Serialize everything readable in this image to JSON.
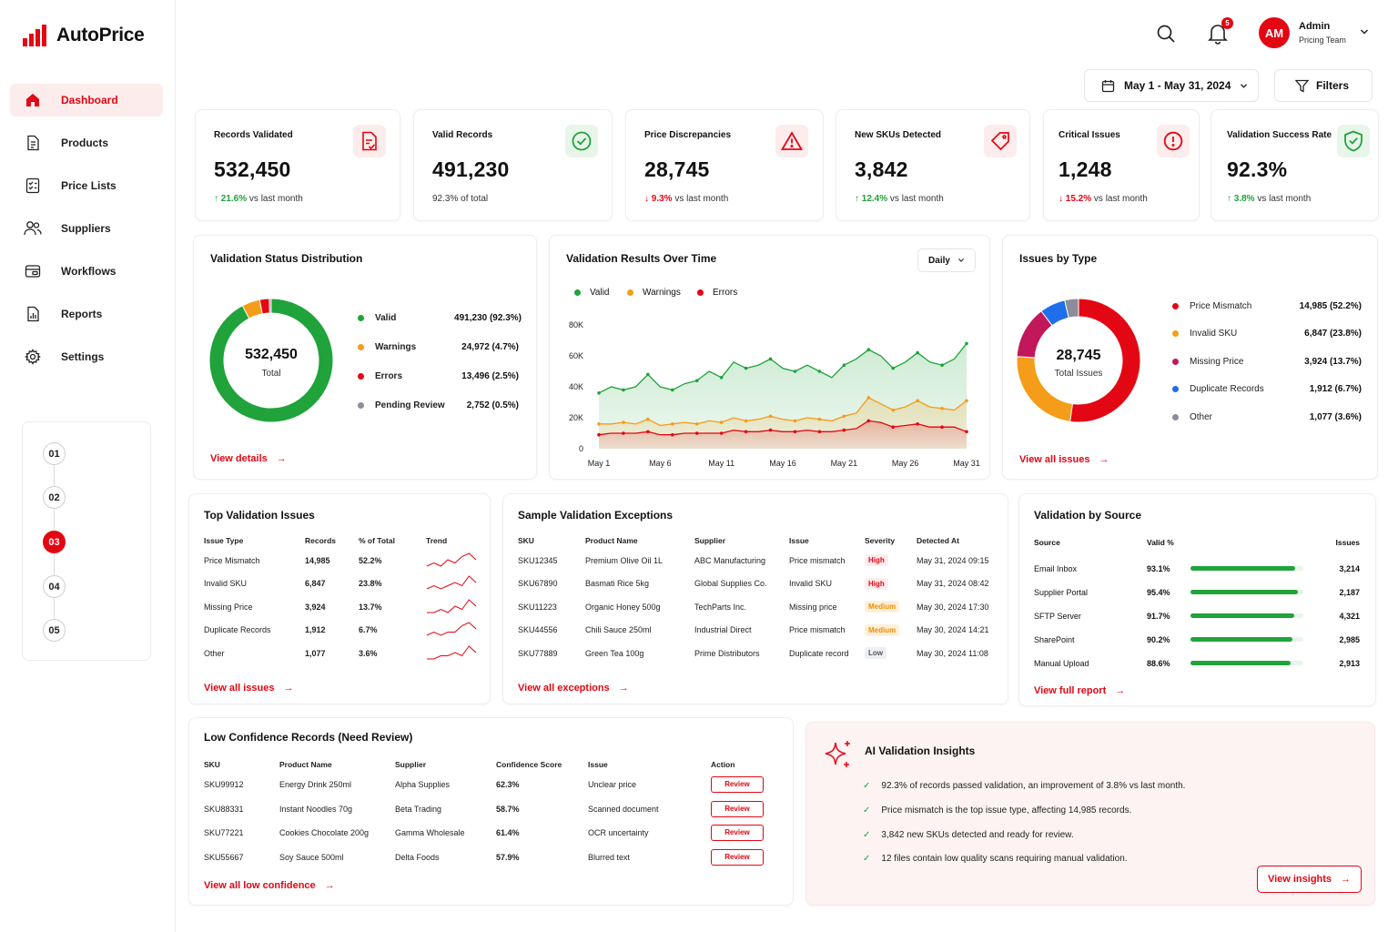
{
  "app": {
    "name": "AutoPrice"
  },
  "sidebar": {
    "items": [
      {
        "label": "Dashboard",
        "icon": "home-icon",
        "active": true
      },
      {
        "label": "Products",
        "icon": "document-icon"
      },
      {
        "label": "Price Lists",
        "icon": "checklist-icon"
      },
      {
        "label": "Suppliers",
        "icon": "users-icon"
      },
      {
        "label": "Workflows",
        "icon": "workflow-icon"
      },
      {
        "label": "Reports",
        "icon": "report-icon"
      },
      {
        "label": "Settings",
        "icon": "gear-icon"
      }
    ],
    "steps": [
      "01",
      "02",
      "03",
      "04",
      "05"
    ],
    "active_step": "03"
  },
  "header": {
    "notification_count": "5",
    "user": {
      "initials": "AM",
      "name": "Admin",
      "team": "Pricing Team"
    },
    "date_range": "May 1 - May 31, 2024",
    "filters_label": "Filters"
  },
  "kpis": [
    {
      "title": "Records Validated",
      "value": "532,450",
      "delta": "21.6%",
      "delta_dir": "up",
      "sub": "vs last month",
      "icon": "document-check-icon"
    },
    {
      "title": "Valid Records",
      "value": "491,230",
      "sub": "92.3% of total",
      "icon": "check-circle-icon"
    },
    {
      "title": "Price Discrepancies",
      "value": "28,745",
      "delta": "9.3%",
      "delta_dir": "down",
      "sub": "vs last month",
      "icon": "warning-icon"
    },
    {
      "title": "New SKUs Detected",
      "value": "3,842",
      "delta": "12.4%",
      "delta_dir": "up",
      "sub": "vs last month",
      "icon": "tag-icon"
    },
    {
      "title": "Critical Issues",
      "value": "1,248",
      "delta": "15.2%",
      "delta_dir": "down",
      "sub": "vs last month",
      "icon": "alert-circle-icon"
    },
    {
      "title": "Validation Success Rate",
      "value": "92.3%",
      "delta": "3.8%",
      "delta_dir": "up",
      "sub": "vs last month",
      "icon": "shield-check-icon"
    }
  ],
  "status_distribution": {
    "title": "Validation Status Distribution",
    "center_value": "532,450",
    "center_label": "Total",
    "link": "View details",
    "items": [
      {
        "label": "Valid",
        "value": "491,230 (92.3%)",
        "share": 92.3,
        "color": "#1fa33a"
      },
      {
        "label": "Warnings",
        "value": "24,972 (4.7%)",
        "share": 4.7,
        "color": "#f59c1a"
      },
      {
        "label": "Errors",
        "value": "13,496 (2.5%)",
        "share": 2.5,
        "color": "#e30613"
      },
      {
        "label": "Pending Review",
        "value": "2,752 (0.5%)",
        "share": 0.5,
        "color": "#8c8c9a"
      }
    ]
  },
  "results_over_time": {
    "title": "Validation Results Over Time",
    "granularity": "Daily",
    "chart_data": {
      "type": "area",
      "x": [
        "May 1",
        "May 2",
        "May 3",
        "May 4",
        "May 5",
        "May 6",
        "May 7",
        "May 8",
        "May 9",
        "May 10",
        "May 11",
        "May 12",
        "May 13",
        "May 14",
        "May 15",
        "May 16",
        "May 17",
        "May 18",
        "May 19",
        "May 20",
        "May 21",
        "May 22",
        "May 23",
        "May 24",
        "May 25",
        "May 26",
        "May 27",
        "May 28",
        "May 29",
        "May 30",
        "May 31"
      ],
      "x_ticks": [
        "May 1",
        "May 6",
        "May 11",
        "May 16",
        "May 21",
        "May 26",
        "May 31"
      ],
      "y_ticks": [
        "0",
        "20K",
        "40K",
        "60K",
        "80K"
      ],
      "ylim": [
        0,
        80000
      ],
      "series": [
        {
          "name": "Valid",
          "color": "#1fa33a",
          "values": [
            36000,
            40000,
            38000,
            40000,
            48000,
            40000,
            38000,
            42000,
            44000,
            50000,
            46000,
            56000,
            52000,
            54000,
            58000,
            52000,
            50000,
            54000,
            50000,
            46000,
            54000,
            58000,
            64000,
            60000,
            52000,
            56000,
            62000,
            56000,
            54000,
            58000,
            68000
          ]
        },
        {
          "name": "Warnings",
          "color": "#f59c1a",
          "values": [
            16000,
            16000,
            17000,
            16000,
            19000,
            15000,
            16000,
            17000,
            16000,
            18000,
            17000,
            20000,
            18000,
            19000,
            21000,
            19000,
            18000,
            20000,
            19000,
            18000,
            21000,
            23000,
            33000,
            29000,
            25000,
            27000,
            31000,
            27000,
            26000,
            25000,
            31000
          ]
        },
        {
          "name": "Errors",
          "color": "#e30613",
          "values": [
            9000,
            10000,
            10000,
            10000,
            11000,
            9000,
            9000,
            10000,
            10000,
            10000,
            10000,
            12000,
            11000,
            11000,
            12000,
            11000,
            11000,
            12000,
            11000,
            11000,
            12000,
            13000,
            18000,
            17000,
            14000,
            15000,
            16000,
            14000,
            14000,
            14000,
            11000
          ]
        }
      ]
    }
  },
  "issues_by_type": {
    "title": "Issues by Type",
    "center_value": "28,745",
    "center_label": "Total Issues",
    "link": "View all issues",
    "items": [
      {
        "label": "Price Mismatch",
        "value": "14,985 (52.2%)",
        "share": 52.2,
        "color": "#e30613"
      },
      {
        "label": "Invalid SKU",
        "value": "6,847 (23.8%)",
        "share": 23.8,
        "color": "#f59c1a"
      },
      {
        "label": "Missing Price",
        "value": "3,924 (13.7%)",
        "share": 13.7,
        "color": "#c2185b"
      },
      {
        "label": "Duplicate Records",
        "value": "1,912 (6.7%)",
        "share": 6.7,
        "color": "#1f6feb"
      },
      {
        "label": "Other",
        "value": "1,077 (3.6%)",
        "share": 3.6,
        "color": "#8c8c9a"
      }
    ]
  },
  "top_issues": {
    "title": "Top Validation Issues",
    "columns": [
      "Issue Type",
      "Records",
      "% of Total",
      "Trend"
    ],
    "rows": [
      {
        "type": "Price Mismatch",
        "records": "14,985",
        "pct": "52.2%",
        "trend": [
          2,
          3,
          2,
          4,
          3,
          5,
          6,
          4
        ]
      },
      {
        "type": "Invalid SKU",
        "records": "6,847",
        "pct": "23.8%",
        "trend": [
          2,
          3,
          2,
          3,
          4,
          3,
          6,
          4
        ]
      },
      {
        "type": "Missing Price",
        "records": "3,924",
        "pct": "13.7%",
        "trend": [
          2,
          2,
          3,
          2,
          4,
          3,
          6,
          4
        ]
      },
      {
        "type": "Duplicate Records",
        "records": "1,912",
        "pct": "6.7%",
        "trend": [
          2,
          3,
          2,
          3,
          3,
          5,
          6,
          4
        ]
      },
      {
        "type": "Other",
        "records": "1,077",
        "pct": "3.6%",
        "trend": [
          2,
          2,
          3,
          3,
          4,
          3,
          6,
          4
        ]
      }
    ],
    "link": "View all issues"
  },
  "exceptions": {
    "title": "Sample Validation Exceptions",
    "columns": [
      "SKU",
      "Product Name",
      "Supplier",
      "Issue",
      "Severity",
      "Detected At"
    ],
    "rows": [
      {
        "sku": "SKU12345",
        "name": "Premium Olive Oil 1L",
        "supplier": "ABC Manufacturing",
        "issue": "Price mismatch",
        "severity": "High",
        "sev": "high",
        "at": "May 31, 2024 09:15"
      },
      {
        "sku": "SKU67890",
        "name": "Basmati Rice 5kg",
        "supplier": "Global Supplies Co.",
        "issue": "Invalid SKU",
        "severity": "High",
        "sev": "high",
        "at": "May 31, 2024 08:42"
      },
      {
        "sku": "SKU11223",
        "name": "Organic Honey 500g",
        "supplier": "TechParts Inc.",
        "issue": "Missing price",
        "severity": "Medium",
        "sev": "med",
        "at": "May 30, 2024 17:30"
      },
      {
        "sku": "SKU44556",
        "name": "Chili Sauce 250ml",
        "supplier": "Industrial Direct",
        "issue": "Price mismatch",
        "severity": "Medium",
        "sev": "med",
        "at": "May 30, 2024 14:21"
      },
      {
        "sku": "SKU77889",
        "name": "Green Tea 100g",
        "supplier": "Prime Distributors",
        "issue": "Duplicate record",
        "severity": "Low",
        "sev": "low",
        "at": "May 30, 2024 11:08"
      }
    ],
    "link": "View all exceptions"
  },
  "by_source": {
    "title": "Validation by Source",
    "columns": [
      "Source",
      "Valid %",
      "Issues"
    ],
    "rows": [
      {
        "source": "Email Inbox",
        "pct": "93.1%",
        "valid_pct": 93.1,
        "issues": "3,214"
      },
      {
        "source": "Supplier Portal",
        "pct": "95.4%",
        "valid_pct": 95.4,
        "issues": "2,187"
      },
      {
        "source": "SFTP Server",
        "pct": "91.7%",
        "valid_pct": 91.7,
        "issues": "4,321"
      },
      {
        "source": "SharePoint",
        "pct": "90.2%",
        "valid_pct": 90.2,
        "issues": "2,985"
      },
      {
        "source": "Manual Upload",
        "pct": "88.6%",
        "valid_pct": 88.6,
        "issues": "2,913"
      }
    ],
    "link": "View full report"
  },
  "low_confidence": {
    "title": "Low Confidence Records (Need Review)",
    "columns": [
      "SKU",
      "Product Name",
      "Supplier",
      "Confidence Score",
      "Issue",
      "Action"
    ],
    "rows": [
      {
        "sku": "SKU99912",
        "name": "Energy Drink 250ml",
        "supplier": "Alpha Supplies",
        "score": "62.3%",
        "issue": "Unclear price",
        "action": "Review"
      },
      {
        "sku": "SKU88331",
        "name": "Instant Noodles 70g",
        "supplier": "Beta Trading",
        "score": "58.7%",
        "issue": "Scanned document",
        "action": "Review"
      },
      {
        "sku": "SKU77221",
        "name": "Cookies Chocolate 200g",
        "supplier": "Gamma Wholesale",
        "score": "61.4%",
        "issue": "OCR uncertainty",
        "action": "Review"
      },
      {
        "sku": "SKU55667",
        "name": "Soy Sauce 500ml",
        "supplier": "Delta Foods",
        "score": "57.9%",
        "issue": "Blurred text",
        "action": "Review"
      }
    ],
    "link": "View all low confidence"
  },
  "insights": {
    "title": "AI Validation Insights",
    "items": [
      "92.3% of records passed validation, an improvement of 3.8% vs last month.",
      "Price mismatch is the top issue type, affecting 14,985 records.",
      "3,842 new SKUs detected and ready for review.",
      "12 files contain low quality scans requiring manual validation."
    ],
    "button": "View insights"
  },
  "colors": {
    "brand": "#e30613",
    "success": "#1fa33a",
    "warning": "#f59c1a"
  }
}
